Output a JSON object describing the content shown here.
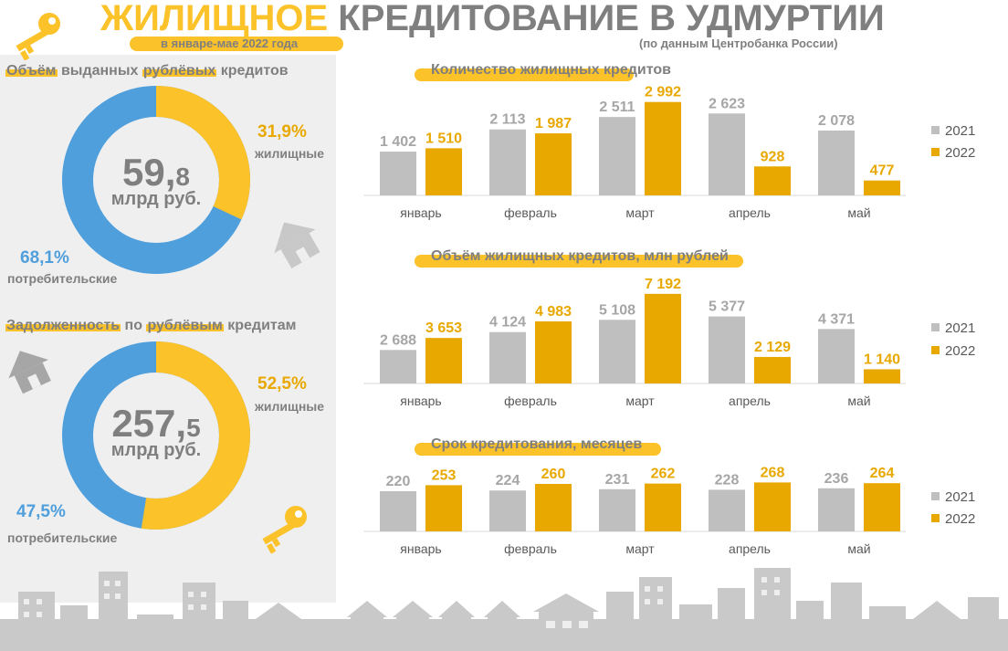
{
  "header": {
    "title_accent": "ЖИЛИЩНОЕ",
    "title_rest": " КРЕДИТОВАНИЕ В УДМУРТИИ",
    "subtitle": "в январе-мае 2022 года",
    "source": "(по данным Центробанка России)"
  },
  "colors": {
    "accent": "#fcc22a",
    "series_2021": "#bfbfbf",
    "series_2022": "#e8a800",
    "consumer": "#4f9fdc",
    "text": "#7f7f7f"
  },
  "left": {
    "volume": {
      "title_part1": "Объём",
      "title_part2": " выданных ",
      "title_part3": "рублёвых",
      "title_part4": " кредитов",
      "center_int": "59,",
      "center_dec": "8",
      "center_unit": "млрд руб.",
      "housing_pct": "31,9%",
      "housing_label": "жилищные",
      "consumer_pct": "68,1%",
      "consumer_label": "потребительские",
      "housing_share": 31.9
    },
    "debt": {
      "title_part1": "Задолженность",
      "title_part2": " по ",
      "title_part3": "рублёвым",
      "title_part4": " кредитам",
      "center_int": "257,",
      "center_dec": "5",
      "center_unit": "млрд руб.",
      "housing_pct": "52,5%",
      "housing_label": "жилищные",
      "consumer_pct": "47,5%",
      "consumer_label": "потребительские",
      "housing_share": 52.5
    }
  },
  "chart_data": [
    {
      "type": "bar",
      "title": "Количество жилищных кредитов",
      "categories": [
        "январь",
        "февраль",
        "март",
        "апрель",
        "май"
      ],
      "series": [
        {
          "name": "2021",
          "values": [
            1402,
            2113,
            2511,
            2623,
            2078
          ],
          "labels": [
            "1 402",
            "2 113",
            "2 511",
            "2 623",
            "2 078"
          ]
        },
        {
          "name": "2022",
          "values": [
            1510,
            1987,
            2992,
            928,
            477
          ],
          "labels": [
            "1 510",
            "1 987",
            "2 992",
            "928",
            "477"
          ]
        }
      ],
      "ylim": [
        0,
        3100
      ],
      "legend": "right"
    },
    {
      "type": "bar",
      "title": "Объём жилищных кредитов, млн рублей",
      "categories": [
        "январь",
        "февраль",
        "март",
        "апрель",
        "май"
      ],
      "series": [
        {
          "name": "2021",
          "values": [
            2688,
            4124,
            5108,
            5377,
            4371
          ],
          "labels": [
            "2 688",
            "4 124",
            "5 108",
            "5 377",
            "4 371"
          ]
        },
        {
          "name": "2022",
          "values": [
            3653,
            4983,
            7192,
            2129,
            1140
          ],
          "labels": [
            "3 653",
            "4 983",
            "7 192",
            "2 129",
            "1 140"
          ]
        }
      ],
      "ylim": [
        0,
        7400
      ],
      "legend": "right"
    },
    {
      "type": "bar",
      "title": "Срок кредитования, месяцев",
      "categories": [
        "январь",
        "февраль",
        "март",
        "апрель",
        "май"
      ],
      "series": [
        {
          "name": "2021",
          "values": [
            220,
            224,
            231,
            228,
            236
          ],
          "labels": [
            "220",
            "224",
            "231",
            "228",
            "236"
          ]
        },
        {
          "name": "2022",
          "values": [
            253,
            260,
            262,
            268,
            264
          ],
          "labels": [
            "253",
            "260",
            "262",
            "268",
            "264"
          ]
        }
      ],
      "ylim": [
        0,
        300
      ],
      "legend": "right"
    }
  ]
}
